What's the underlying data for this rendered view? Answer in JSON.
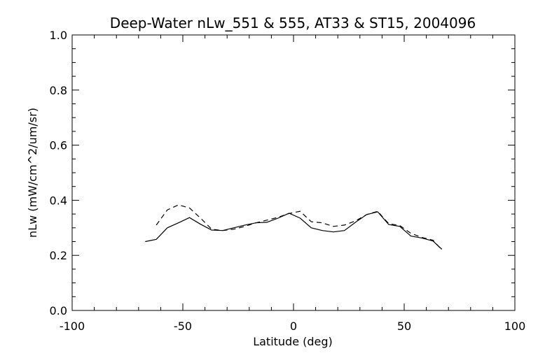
{
  "chart_data": {
    "type": "line",
    "title": "Deep-Water nLw_551 & 555, AT33 & ST15, 2004096",
    "xlabel": "Latitude (deg)",
    "ylabel": "nLw (mW/cm^2/um/sr)",
    "xlim": [
      -100,
      100
    ],
    "ylim": [
      0.0,
      1.0
    ],
    "x_ticks": [
      -100,
      -50,
      0,
      50,
      100
    ],
    "x_tick_labels": [
      "-100",
      "-50",
      "0",
      "50",
      "100"
    ],
    "y_ticks": [
      0.0,
      0.2,
      0.4,
      0.6,
      0.8,
      1.0
    ],
    "y_tick_labels": [
      "0.0",
      "0.2",
      "0.4",
      "0.6",
      "0.8",
      "1.0"
    ],
    "grid": false,
    "series": [
      {
        "style": "solid",
        "color": "#000000",
        "x": [
          -67,
          -62,
          -57,
          -52,
          -47,
          -42,
          -37,
          -32,
          -27,
          -22,
          -17,
          -12,
          -7,
          -2,
          3,
          8,
          13,
          18,
          23,
          28,
          33,
          38,
          43,
          48,
          53,
          58,
          63,
          67
        ],
        "y": [
          0.25,
          0.258,
          0.3,
          0.318,
          0.337,
          0.313,
          0.292,
          0.29,
          0.3,
          0.31,
          0.318,
          0.32,
          0.335,
          0.353,
          0.335,
          0.3,
          0.29,
          0.285,
          0.29,
          0.32,
          0.348,
          0.358,
          0.312,
          0.305,
          0.27,
          0.263,
          0.252,
          0.222
        ]
      },
      {
        "style": "dashed",
        "color": "#000000",
        "x": [
          -62,
          -57,
          -52,
          -47,
          -42,
          -37,
          -32,
          -27,
          -22,
          -17,
          -12,
          -7,
          -2,
          3,
          8,
          13,
          18,
          23,
          28,
          33,
          38,
          43,
          48,
          53,
          58,
          63,
          67
        ],
        "y": [
          0.31,
          0.365,
          0.383,
          0.372,
          0.335,
          0.295,
          0.29,
          0.295,
          0.305,
          0.318,
          0.328,
          0.338,
          0.352,
          0.36,
          0.322,
          0.318,
          0.305,
          0.31,
          0.325,
          0.348,
          0.36,
          0.315,
          0.308,
          0.28,
          0.265,
          0.255,
          0.22
        ]
      }
    ]
  }
}
